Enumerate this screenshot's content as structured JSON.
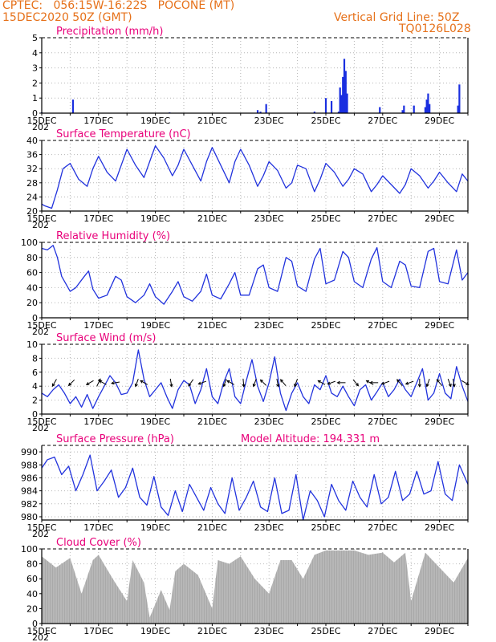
{
  "header": {
    "line1": "CPTEC:   056:15W-16:22S   POCONE (MT)",
    "line2": "15DEC2020 50Z (GMT)",
    "right1": "Vertical Grid Line: 50Z",
    "right2": "TQ0126L028"
  },
  "x_ticks": [
    "15DEC",
    "17DEC",
    "19DEC",
    "21DEC",
    "23DEC",
    "25DEC",
    "27DEC",
    "29DEC"
  ],
  "x_year": "202",
  "colors": {
    "line": "#2233dd",
    "bar": "#1a2fe0",
    "cloud": "#a9a9a9",
    "title": "#e8007a",
    "header": "#e6711a"
  },
  "chart_data": [
    {
      "type": "bar",
      "title": "Precipitation (mm/h)",
      "ylim": [
        0,
        5
      ],
      "yticks": [
        0,
        1,
        2,
        3,
        4,
        5
      ],
      "x_range_days": [
        0,
        15
      ],
      "values": [
        [
          0.0,
          0.05
        ],
        [
          1.1,
          0.9
        ],
        [
          4.5,
          0.05
        ],
        [
          7.6,
          0.2
        ],
        [
          7.7,
          0.1
        ],
        [
          7.9,
          0.6
        ],
        [
          9.6,
          0.1
        ],
        [
          10.0,
          1.0
        ],
        [
          10.2,
          0.8
        ],
        [
          10.45,
          0.1
        ],
        [
          10.5,
          1.7
        ],
        [
          10.55,
          1.2
        ],
        [
          10.6,
          2.4
        ],
        [
          10.65,
          3.6
        ],
        [
          10.7,
          2.8
        ],
        [
          10.75,
          1.3
        ],
        [
          11.9,
          0.4
        ],
        [
          12.7,
          0.2
        ],
        [
          12.75,
          0.5
        ],
        [
          13.1,
          0.5
        ],
        [
          13.5,
          0.4
        ],
        [
          13.55,
          0.9
        ],
        [
          13.6,
          1.3
        ],
        [
          13.65,
          0.6
        ],
        [
          14.65,
          0.5
        ],
        [
          14.7,
          1.9
        ]
      ]
    },
    {
      "type": "line",
      "title": "Surface Temperature (nC)",
      "ylim": [
        20,
        40
      ],
      "yticks": [
        20,
        24,
        28,
        32,
        36,
        40
      ],
      "x": [
        0,
        0.1,
        0.35,
        0.55,
        0.75,
        1.0,
        1.3,
        1.6,
        1.8,
        2.0,
        2.3,
        2.6,
        2.8,
        3.0,
        3.3,
        3.6,
        3.8,
        4.0,
        4.3,
        4.6,
        4.8,
        5.0,
        5.3,
        5.6,
        5.8,
        6.0,
        6.3,
        6.6,
        6.8,
        7.0,
        7.3,
        7.6,
        7.8,
        8.0,
        8.3,
        8.6,
        8.8,
        9.0,
        9.3,
        9.6,
        9.8,
        10.0,
        10.3,
        10.6,
        10.8,
        11.0,
        11.3,
        11.6,
        11.8,
        12.0,
        12.3,
        12.6,
        12.8,
        13.0,
        13.3,
        13.6,
        13.8,
        14.0,
        14.3,
        14.6,
        14.8,
        15.0
      ],
      "y": [
        22,
        21.5,
        20.8,
        26,
        32,
        33.5,
        29,
        27,
        32,
        35.5,
        31,
        28.5,
        33,
        37.5,
        33,
        29.5,
        34,
        38.5,
        35,
        30,
        33,
        37.5,
        33,
        28.5,
        34,
        38,
        33,
        28,
        34,
        37.5,
        33,
        27,
        30,
        34,
        31.5,
        26.5,
        28,
        33,
        32,
        25.5,
        29,
        33.5,
        31,
        27,
        29,
        32,
        30.5,
        25.5,
        27.5,
        30,
        27.5,
        25,
        27.5,
        32,
        30,
        26.5,
        28.5,
        31,
        28,
        25.5,
        30.5,
        28.5
      ]
    },
    {
      "type": "line",
      "title": "Relative Humidity (%)",
      "ylim": [
        0,
        100
      ],
      "yticks": [
        0,
        20,
        40,
        60,
        80,
        100
      ],
      "x": [
        0,
        0.2,
        0.4,
        0.55,
        0.7,
        1.0,
        1.2,
        1.5,
        1.65,
        1.8,
        2.0,
        2.3,
        2.6,
        2.8,
        3.0,
        3.3,
        3.6,
        3.8,
        4.0,
        4.3,
        4.6,
        4.8,
        5.0,
        5.3,
        5.6,
        5.8,
        6.0,
        6.3,
        6.6,
        6.8,
        7.0,
        7.3,
        7.6,
        7.8,
        8.0,
        8.3,
        8.6,
        8.8,
        9.0,
        9.3,
        9.6,
        9.8,
        10.0,
        10.3,
        10.6,
        10.8,
        11.0,
        11.3,
        11.6,
        11.8,
        12.0,
        12.3,
        12.6,
        12.8,
        13.0,
        13.3,
        13.6,
        13.8,
        14.0,
        14.3,
        14.6,
        14.8,
        15.0
      ],
      "y": [
        92,
        90,
        96,
        80,
        55,
        35,
        40,
        55,
        62,
        38,
        26,
        30,
        55,
        50,
        28,
        20,
        30,
        45,
        28,
        18,
        35,
        48,
        28,
        22,
        35,
        58,
        30,
        25,
        45,
        60,
        30,
        30,
        65,
        70,
        40,
        35,
        80,
        75,
        42,
        35,
        78,
        92,
        45,
        50,
        88,
        80,
        48,
        40,
        78,
        93,
        48,
        40,
        75,
        70,
        42,
        40,
        88,
        92,
        48,
        45,
        90,
        50,
        60
      ]
    },
    {
      "type": "line",
      "title": "Surface Wind (m/s)",
      "ylim": [
        0,
        10
      ],
      "yticks": [
        0,
        2,
        4,
        6,
        8,
        10
      ],
      "x": [
        0,
        0.2,
        0.4,
        0.6,
        0.8,
        1.0,
        1.2,
        1.4,
        1.6,
        1.8,
        2.0,
        2.2,
        2.4,
        2.6,
        2.8,
        3.0,
        3.2,
        3.4,
        3.6,
        3.8,
        4.0,
        4.2,
        4.4,
        4.6,
        4.8,
        5.0,
        5.2,
        5.4,
        5.6,
        5.8,
        6.0,
        6.2,
        6.4,
        6.6,
        6.8,
        7.0,
        7.2,
        7.4,
        7.6,
        7.8,
        8.0,
        8.2,
        8.4,
        8.6,
        8.8,
        9.0,
        9.2,
        9.4,
        9.6,
        9.8,
        10.0,
        10.2,
        10.4,
        10.6,
        10.8,
        11.0,
        11.2,
        11.4,
        11.6,
        11.8,
        12.0,
        12.2,
        12.4,
        12.6,
        12.8,
        13.0,
        13.2,
        13.4,
        13.6,
        13.8,
        14.0,
        14.2,
        14.4,
        14.6,
        14.8,
        15.0
      ],
      "y": [
        3,
        2.5,
        3.5,
        4.2,
        3,
        1.5,
        2.5,
        1.0,
        2.8,
        0.8,
        2.5,
        4,
        5.5,
        4.5,
        2.8,
        3,
        4.5,
        9.2,
        5,
        2.5,
        3.5,
        4.5,
        2.5,
        0.8,
        3.5,
        4.8,
        4.2,
        1.5,
        3.5,
        6.5,
        2.5,
        1.5,
        4.5,
        6.5,
        2.5,
        1.5,
        4.8,
        7.8,
        4,
        1.8,
        4.5,
        8.2,
        3,
        0.5,
        3,
        4.5,
        2.5,
        1.5,
        4.2,
        3.5,
        5.5,
        3,
        2.5,
        4,
        2.5,
        1.2,
        3.5,
        4.2,
        2,
        3.2,
        4.5,
        2.5,
        3.5,
        5,
        3.5,
        2.5,
        4.5,
        6.5,
        2,
        3,
        5.8,
        3,
        2.2,
        6.8,
        4,
        1.8
      ],
      "arrows": [
        [
          0.45,
          210
        ],
        [
          1.05,
          225
        ],
        [
          1.7,
          240
        ],
        [
          2.0,
          25
        ],
        [
          2.15,
          300
        ],
        [
          2.6,
          260
        ],
        [
          3.35,
          200
        ],
        [
          3.6,
          300
        ],
        [
          4.55,
          170
        ],
        [
          5.25,
          215
        ],
        [
          5.65,
          250
        ],
        [
          6.45,
          200
        ],
        [
          6.65,
          300
        ],
        [
          7.1,
          175
        ],
        [
          7.5,
          200
        ],
        [
          7.8,
          315
        ],
        [
          8.3,
          170
        ],
        [
          8.5,
          320
        ],
        [
          8.95,
          200
        ],
        [
          9.85,
          300
        ],
        [
          10.2,
          250
        ],
        [
          10.55,
          270
        ],
        [
          11.05,
          140
        ],
        [
          11.55,
          300
        ],
        [
          11.7,
          270
        ],
        [
          12.1,
          250
        ],
        [
          12.6,
          320
        ],
        [
          12.95,
          250
        ],
        [
          13.3,
          180
        ],
        [
          13.6,
          200
        ],
        [
          14.0,
          320
        ],
        [
          14.35,
          160
        ],
        [
          14.5,
          170
        ],
        [
          14.9,
          120
        ]
      ]
    },
    {
      "type": "line",
      "title": "Surface Pressure (hPa)",
      "annotation": "Model Altitude: 194.331 m",
      "ylim": [
        979.5,
        991
      ],
      "yticks": [
        980,
        982,
        984,
        986,
        988,
        990
      ],
      "x": [
        0,
        0.2,
        0.45,
        0.7,
        0.95,
        1.2,
        1.45,
        1.7,
        1.95,
        2.2,
        2.45,
        2.7,
        2.95,
        3.2,
        3.45,
        3.7,
        3.95,
        4.2,
        4.45,
        4.7,
        4.95,
        5.2,
        5.45,
        5.7,
        5.95,
        6.2,
        6.45,
        6.7,
        6.95,
        7.2,
        7.45,
        7.7,
        7.95,
        8.2,
        8.45,
        8.7,
        8.95,
        9.2,
        9.45,
        9.7,
        9.95,
        10.2,
        10.45,
        10.7,
        10.95,
        11.2,
        11.45,
        11.7,
        11.95,
        12.2,
        12.45,
        12.7,
        12.95,
        13.2,
        13.45,
        13.7,
        13.95,
        14.2,
        14.45,
        14.7,
        15.0
      ],
      "y": [
        987.5,
        988.8,
        989.2,
        986.5,
        987.8,
        984,
        986.5,
        989.5,
        984,
        985.5,
        987.2,
        983,
        984.5,
        987.5,
        983,
        981.8,
        986.2,
        981.5,
        980.2,
        984,
        980.8,
        985,
        983,
        981,
        984.5,
        982,
        980.5,
        986,
        981,
        983,
        985.5,
        981.5,
        980.8,
        986,
        980.5,
        981,
        986.5,
        979.5,
        984,
        982.5,
        980,
        985,
        982.5,
        981,
        985.5,
        983,
        981.5,
        986.5,
        982,
        983,
        987,
        982.5,
        983.5,
        987,
        983.5,
        984,
        988.5,
        983.5,
        982.5,
        988,
        985
      ]
    },
    {
      "type": "area",
      "title": "Cloud Cover (%)",
      "ylim": [
        0,
        100
      ],
      "yticks": [
        0,
        20,
        40,
        60,
        80,
        100
      ],
      "x": [
        0,
        0.5,
        1.0,
        1.4,
        1.8,
        2.0,
        2.5,
        3.0,
        3.2,
        3.6,
        3.8,
        4.2,
        4.5,
        4.7,
        5.0,
        5.5,
        6.0,
        6.2,
        6.6,
        7.0,
        7.5,
        8.0,
        8.4,
        8.8,
        9.2,
        9.6,
        10.0,
        10.5,
        11.0,
        11.5,
        12.0,
        12.4,
        12.8,
        13.0,
        13.5,
        14.0,
        14.5,
        15.0
      ],
      "y": [
        90,
        75,
        88,
        40,
        85,
        92,
        60,
        30,
        85,
        55,
        8,
        45,
        18,
        70,
        80,
        65,
        20,
        85,
        80,
        90,
        60,
        40,
        85,
        85,
        60,
        92,
        98,
        98,
        98,
        92,
        95,
        82,
        95,
        30,
        95,
        75,
        55,
        88
      ]
    }
  ]
}
